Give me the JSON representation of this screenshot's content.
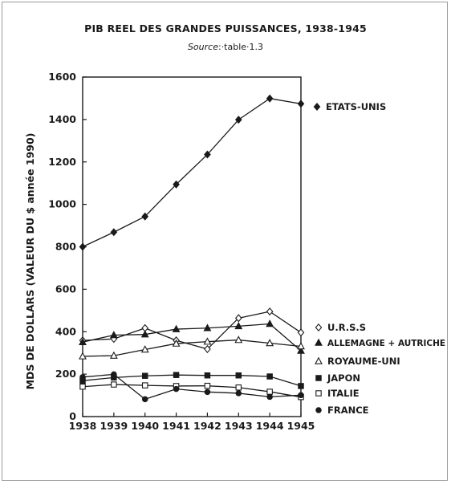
{
  "chart_data": {
    "type": "line",
    "title": "PIB REEL DES GRANDES PUISSANCES, 1938-1945",
    "subtitle_prefix": "Source",
    "subtitle_rest": ":·table·1.3",
    "ylabel": "MDS DE DOLLARS (VALEUR DU $ année 1990)",
    "xlabel": "",
    "x": [
      1938,
      1939,
      1940,
      1941,
      1942,
      1943,
      1944,
      1945
    ],
    "x_ticks": [
      "1938",
      "1939",
      "1940",
      "1941",
      "1942",
      "1943",
      "1944",
      "1945"
    ],
    "ylim": [
      0,
      1600
    ],
    "y_ticks": [
      "0",
      "200",
      "400",
      "600",
      "800",
      "1000",
      "1200",
      "1400",
      "1600"
    ],
    "grid": false,
    "legend_position": "right",
    "series": [
      {
        "name": "ETATS-UNIS",
        "marker": "diamond-filled",
        "values": [
          800,
          869,
          943,
          1094,
          1235,
          1399,
          1499,
          1474
        ]
      },
      {
        "name": "U.R.S.S",
        "marker": "diamond-open",
        "values": [
          359,
          366,
          417,
          359,
          318,
          464,
          495,
          396
        ]
      },
      {
        "name": "ALLEMAGNE + AUTRICHE",
        "marker": "triangle-filled",
        "values": [
          351,
          384,
          387,
          412,
          417,
          426,
          437,
          310
        ]
      },
      {
        "name": "ROYAUME-UNI",
        "marker": "triangle-open",
        "values": [
          284,
          287,
          316,
          344,
          353,
          361,
          346,
          331
        ]
      },
      {
        "name": "JAPON",
        "marker": "square-filled",
        "values": [
          169,
          184,
          192,
          196,
          194,
          194,
          189,
          144
        ]
      },
      {
        "name": "ITALIE",
        "marker": "square-open",
        "values": [
          141,
          151,
          147,
          144,
          145,
          137,
          117,
          92
        ]
      },
      {
        "name": "FRANCE",
        "marker": "circle-filled",
        "values": [
          186,
          199,
          82,
          130,
          116,
          110,
          93,
          101
        ]
      }
    ]
  }
}
